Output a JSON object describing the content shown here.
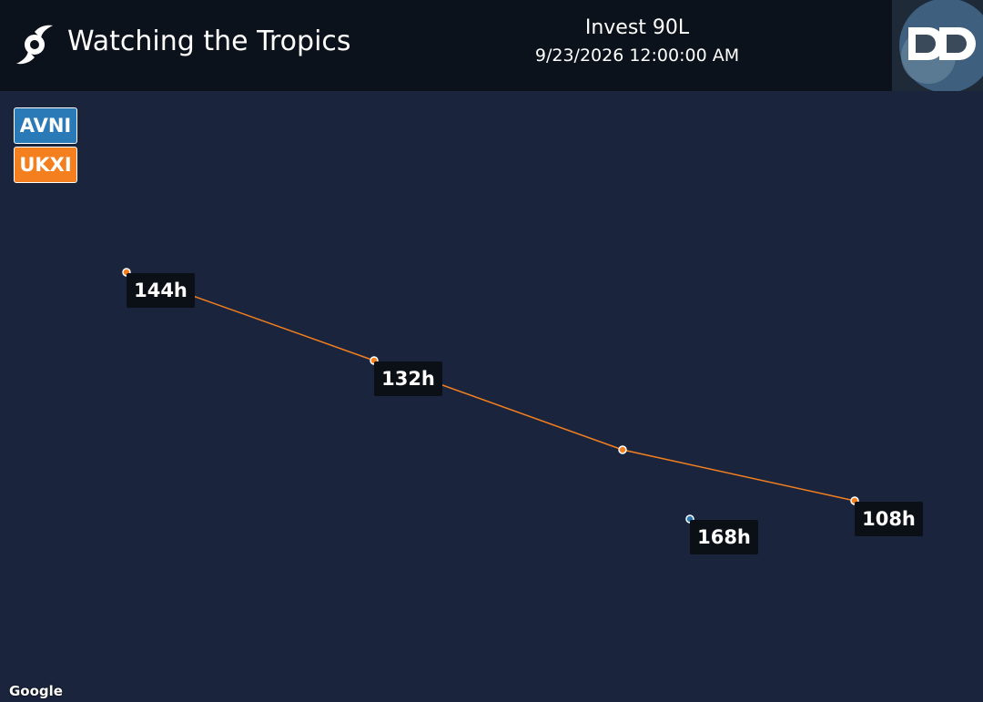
{
  "header": {
    "title": "Watching the Tropics",
    "storm": "Invest 90L",
    "datetime": "9/23/2026 12:00:00 AM"
  },
  "legend": [
    {
      "name": "AVNI",
      "color": "#2a7ab8"
    },
    {
      "name": "UKXI",
      "color": "#f47f1f"
    }
  ],
  "tracks": [
    {
      "model": "AVNI",
      "color": "#2a7ab8",
      "labels": [
        "168h"
      ]
    },
    {
      "model": "UKXI",
      "color": "#f47f1f",
      "labels": [
        "108h",
        null,
        "132h",
        "144h"
      ]
    }
  ],
  "map": {
    "attribution": "Google"
  }
}
